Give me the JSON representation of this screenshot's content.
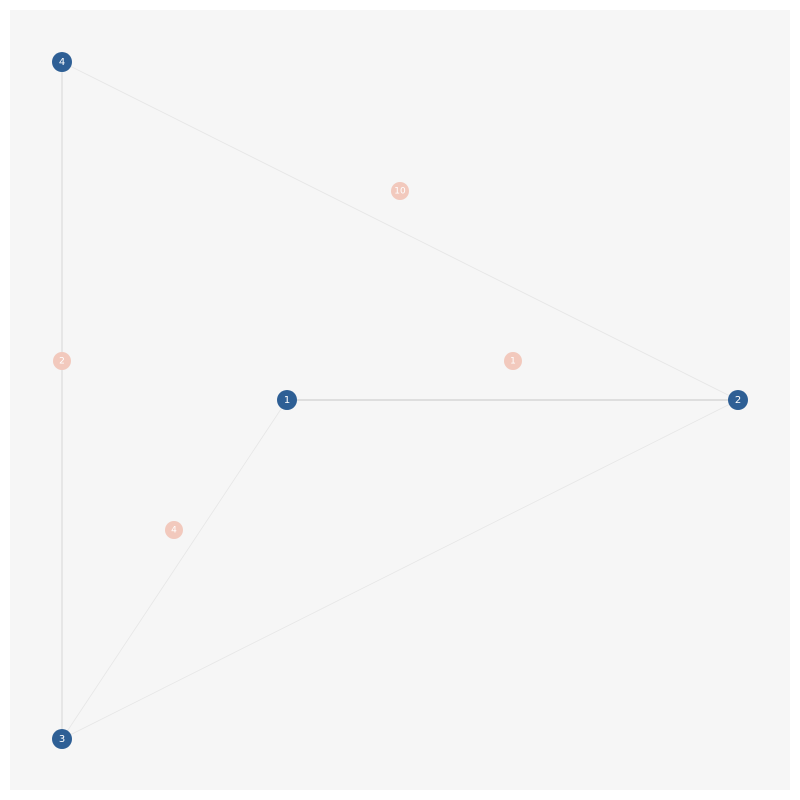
{
  "colors": {
    "background": "#f6f6f6",
    "node_fill": "#2e5f95",
    "node_text": "#ffffff",
    "edge": "#dcdcdc",
    "weight_badge": "#f2c9bd",
    "weight_text": "#ffffff"
  },
  "graph": {
    "nodes": [
      {
        "id": "1",
        "label": "1"
      },
      {
        "id": "2",
        "label": "2"
      },
      {
        "id": "3",
        "label": "3"
      },
      {
        "id": "4",
        "label": "4"
      }
    ],
    "edges": [
      {
        "source": "1",
        "target": "2",
        "weight": "1",
        "emphasis": "strong"
      },
      {
        "source": "1",
        "target": "3",
        "weight": "4",
        "emphasis": "faint"
      },
      {
        "source": "2",
        "target": "3",
        "weight": "",
        "emphasis": "faint"
      },
      {
        "source": "2",
        "target": "4",
        "weight": "10",
        "emphasis": "faint"
      },
      {
        "source": "3",
        "target": "4",
        "weight": "2",
        "emphasis": "normal"
      }
    ]
  }
}
